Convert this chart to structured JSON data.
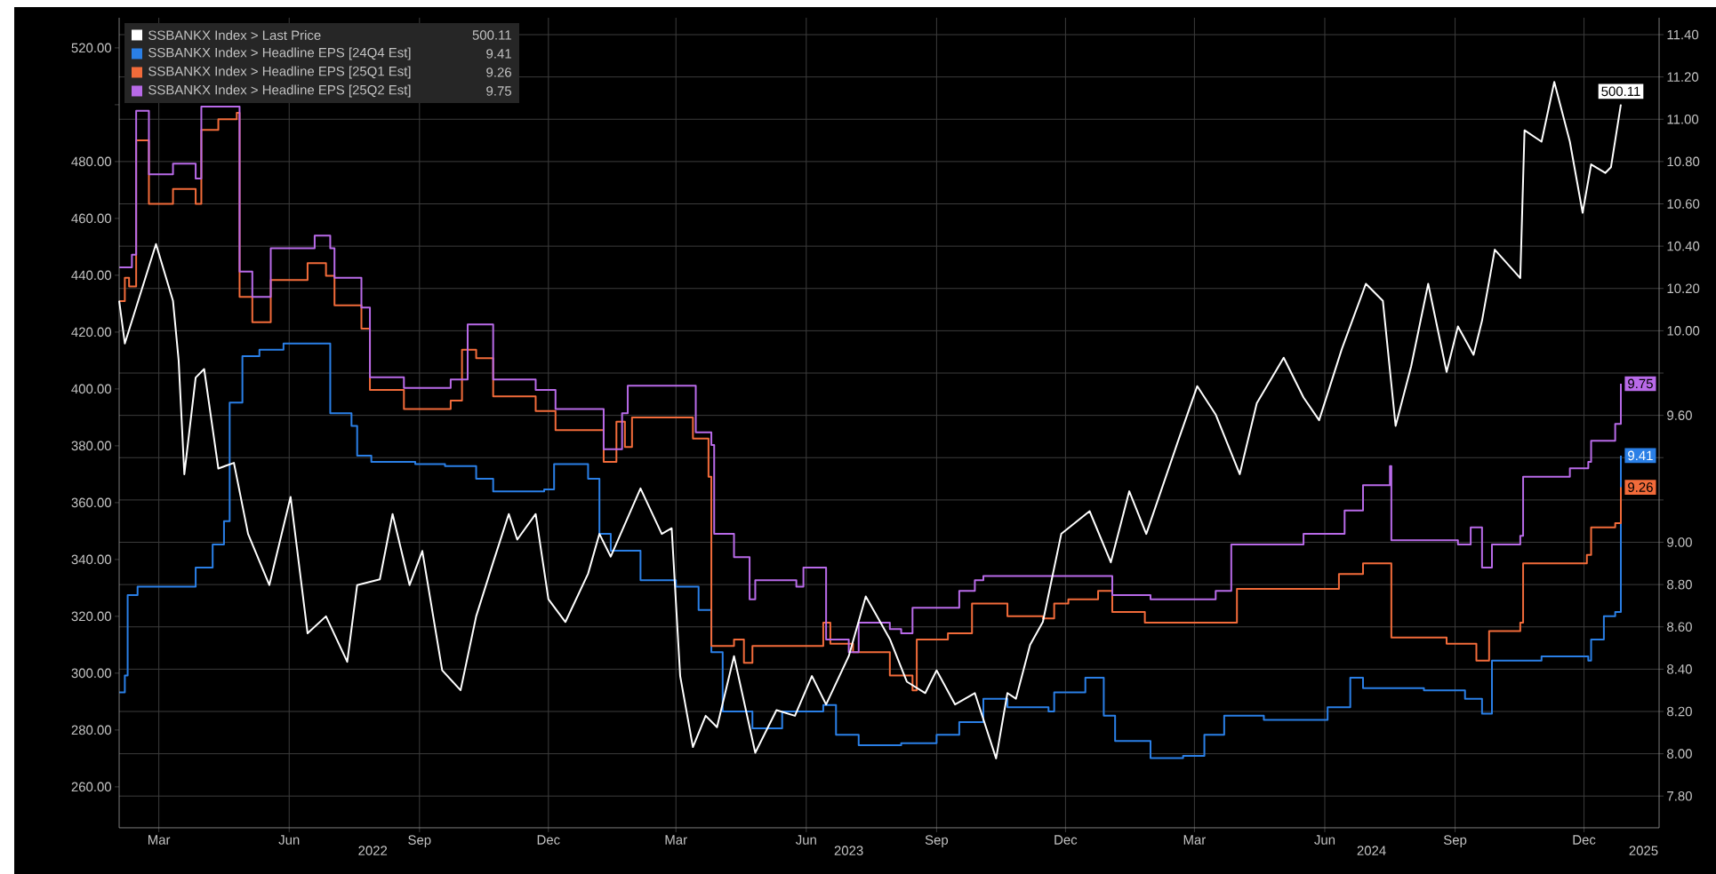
{
  "chart_data": {
    "type": "line",
    "xlim": [
      "2022-02-01",
      "2025-01-23"
    ],
    "xticks": [
      {
        "value": "2022-03-01",
        "label": "Mar"
      },
      {
        "value": "2022-06-01",
        "label": "Jun"
      },
      {
        "value": "2022-09-01",
        "label": "Sep"
      },
      {
        "value": "2022-12-01",
        "label": "Dec"
      },
      {
        "value": "2023-03-01",
        "label": "Mar"
      },
      {
        "value": "2023-06-01",
        "label": "Jun"
      },
      {
        "value": "2023-09-01",
        "label": "Sep"
      },
      {
        "value": "2023-12-01",
        "label": "Dec"
      },
      {
        "value": "2024-03-01",
        "label": "Mar"
      },
      {
        "value": "2024-06-01",
        "label": "Jun"
      },
      {
        "value": "2024-09-01",
        "label": "Sep"
      },
      {
        "value": "2024-12-01",
        "label": "Dec"
      }
    ],
    "x2lim": [
      "2022-02-01",
      "2025-01-23"
    ],
    "x2ticks": [
      {
        "value": "2022-07-30",
        "label": "2022"
      },
      {
        "value": "2023-07-01",
        "label": "2023"
      },
      {
        "value": "2024-07-04",
        "label": "2024"
      },
      {
        "value": "2025-01-12",
        "label": "2025"
      }
    ],
    "annotations": [
      "500.11",
      "9.41",
      "9.26",
      "9.75"
    ],
    "ylim": [
      245.6,
      530.6
    ],
    "yticks": [
      {
        "value": 260,
        "label": "260.00"
      },
      {
        "value": 280,
        "label": "280.00"
      },
      {
        "value": 300,
        "label": "300.00"
      },
      {
        "value": 320,
        "label": "320.00"
      },
      {
        "value": 340,
        "label": "340.00"
      },
      {
        "value": 360,
        "label": "360.00"
      },
      {
        "value": 380,
        "label": "380.00"
      },
      {
        "value": 400,
        "label": "400.00"
      },
      {
        "value": 420,
        "label": "420.00"
      },
      {
        "value": 440,
        "label": "440.00"
      },
      {
        "value": 460,
        "label": "460.00"
      },
      {
        "value": 480,
        "label": "480.00"
      },
      {
        "value": 500,
        "label": null
      },
      {
        "value": 520,
        "label": "520.00"
      }
    ],
    "y2lim": [
      7.65,
      11.48
    ],
    "y2ticks": [
      {
        "value": 7.8,
        "label": "7.80"
      },
      {
        "value": 8.0,
        "label": "8.00"
      },
      {
        "value": 8.2,
        "label": "8.20"
      },
      {
        "value": 8.4,
        "label": "8.40"
      },
      {
        "value": 8.6,
        "label": "8.60"
      },
      {
        "value": 8.8,
        "label": "8.80"
      },
      {
        "value": 9.0,
        "label": "9.00"
      },
      {
        "value": 9.2,
        "label": null
      },
      {
        "value": 9.4,
        "label": null
      },
      {
        "value": 9.6,
        "label": "9.60"
      },
      {
        "value": 9.8,
        "label": null
      },
      {
        "value": 10.0,
        "label": "10.00"
      },
      {
        "value": 10.2,
        "label": "10.20"
      },
      {
        "value": 10.4,
        "label": "10.40"
      },
      {
        "value": 10.6,
        "label": "10.60"
      },
      {
        "value": 10.8,
        "label": "10.80"
      },
      {
        "value": 11.0,
        "label": "11.00"
      },
      {
        "value": 11.2,
        "label": "11.20"
      },
      {
        "value": 11.4,
        "label": "11.40"
      }
    ],
    "grid": true,
    "legend": "top left",
    "series": [
      {
        "name": "SSBANKX Index > Last Price",
        "color": "#ffffff",
        "axis": "y",
        "x": [
          "2022-02-01",
          "2022-02-05",
          "2022-02-27",
          "2022-03-11",
          "2022-03-15",
          "2022-03-19",
          "2022-03-27",
          "2022-04-02",
          "2022-04-12",
          "2022-04-23",
          "2022-05-03",
          "2022-05-18",
          "2022-06-02",
          "2022-06-14",
          "2022-06-27",
          "2022-07-12",
          "2022-07-19",
          "2022-08-04",
          "2022-08-13",
          "2022-08-25",
          "2022-09-03",
          "2022-09-17",
          "2022-09-30",
          "2022-10-11",
          "2022-10-23",
          "2022-11-03",
          "2022-11-09",
          "2022-11-22",
          "2022-12-01",
          "2022-12-13",
          "2022-12-29",
          "2023-01-06",
          "2023-01-14",
          "2023-02-04",
          "2023-02-19",
          "2023-02-26",
          "2023-03-04",
          "2023-03-13",
          "2023-03-22",
          "2023-03-30",
          "2023-04-11",
          "2023-04-26",
          "2023-05-11",
          "2023-05-24",
          "2023-06-05",
          "2023-06-15",
          "2023-07-01",
          "2023-07-13",
          "2023-07-21",
          "2023-07-30",
          "2023-08-11",
          "2023-08-24",
          "2023-09-01",
          "2023-09-14",
          "2023-09-28",
          "2023-10-13",
          "2023-10-21",
          "2023-10-27",
          "2023-11-06",
          "2023-11-15",
          "2023-11-28",
          "2023-12-18",
          "2024-01-02",
          "2024-01-15",
          "2024-01-27",
          "2024-02-18",
          "2024-03-03",
          "2024-03-16",
          "2024-04-02",
          "2024-04-14",
          "2024-05-03",
          "2024-05-17",
          "2024-05-28",
          "2024-06-13",
          "2024-06-30",
          "2024-07-12",
          "2024-07-21",
          "2024-08-01",
          "2024-08-13",
          "2024-08-26",
          "2024-09-03",
          "2024-09-14",
          "2024-09-20",
          "2024-09-29",
          "2024-10-17",
          "2024-10-20",
          "2024-11-01",
          "2024-11-10",
          "2024-11-21",
          "2024-11-30",
          "2024-12-06",
          "2024-12-16",
          "2024-12-20",
          "2024-12-27"
        ],
        "values": [
          431,
          416,
          451,
          431,
          410,
          370,
          404,
          407,
          372,
          374,
          349,
          331,
          362,
          314,
          320,
          304,
          331,
          333,
          356,
          331,
          343,
          301,
          294,
          320,
          339,
          356,
          347,
          356,
          326,
          318,
          335,
          349,
          341,
          365,
          349,
          351,
          299,
          274,
          285,
          281,
          306,
          272,
          287,
          285,
          299,
          289,
          306,
          327,
          320,
          312,
          297,
          293,
          301,
          289,
          293,
          270,
          293,
          291,
          310,
          318,
          349,
          357,
          339,
          364,
          349,
          381,
          401,
          391,
          370,
          395,
          411,
          397,
          389,
          414,
          437,
          431,
          387,
          408,
          437,
          406,
          422,
          412,
          424,
          449,
          439,
          491,
          487,
          508,
          487,
          462,
          479,
          476,
          478,
          500.11
        ],
        "value_labels": [
          null,
          null,
          null,
          null,
          null,
          null,
          null,
          null,
          null,
          null,
          null,
          null,
          null,
          null,
          null,
          null,
          null,
          null,
          null,
          null,
          null,
          null,
          null,
          null,
          null,
          null,
          null,
          null,
          null,
          null,
          null,
          null,
          null,
          null,
          null,
          null,
          null,
          null,
          null,
          null,
          null,
          null,
          null,
          null,
          null,
          null,
          null,
          null,
          null,
          null,
          null,
          null,
          null,
          null,
          null,
          null,
          null,
          null,
          null,
          null,
          null,
          null,
          null,
          null,
          null,
          null,
          null,
          null,
          null,
          null,
          null,
          null,
          null,
          null,
          null,
          null,
          null,
          null,
          null,
          null,
          null,
          null,
          null,
          null,
          null,
          null,
          null,
          null,
          null,
          null,
          null,
          null,
          null,
          "500.11"
        ]
      },
      {
        "name": "SSBANKX Index > Headline EPS [24Q4 Est]",
        "color": "#2a7fe6",
        "type": "step",
        "axis": "y2",
        "x": [
          "2022-02-01",
          "2022-02-05",
          "2022-02-07",
          "2022-02-14",
          "2022-03-27",
          "2022-04-08",
          "2022-04-16",
          "2022-04-20",
          "2022-04-29",
          "2022-05-11",
          "2022-05-28",
          "2022-06-30",
          "2022-07-15",
          "2022-07-19",
          "2022-07-29",
          "2022-08-29",
          "2022-09-19",
          "2022-10-11",
          "2022-10-23",
          "2022-11-28",
          "2022-12-05",
          "2022-12-29",
          "2023-01-06",
          "2023-01-14",
          "2023-02-04",
          "2023-03-01",
          "2023-03-17",
          "2023-03-26",
          "2023-04-03",
          "2023-04-24",
          "2023-05-15",
          "2023-06-13",
          "2023-06-22",
          "2023-07-08",
          "2023-08-07",
          "2023-09-01",
          "2023-09-17",
          "2023-10-04",
          "2023-10-21",
          "2023-11-19",
          "2023-11-23",
          "2023-12-15",
          "2023-12-28",
          "2024-01-05",
          "2024-01-30",
          "2024-02-22",
          "2024-03-08",
          "2024-03-22",
          "2024-04-19",
          "2024-06-03",
          "2024-06-19",
          "2024-06-28",
          "2024-08-10",
          "2024-09-08",
          "2024-09-20",
          "2024-09-27",
          "2024-11-01",
          "2024-12-04",
          "2024-12-06",
          "2024-12-15",
          "2024-12-23",
          "2024-12-27"
        ],
        "values": [
          8.29,
          8.37,
          8.75,
          8.79,
          8.88,
          8.99,
          9.1,
          9.66,
          9.88,
          9.91,
          9.94,
          9.61,
          9.55,
          9.41,
          9.38,
          9.37,
          9.36,
          9.3,
          9.24,
          9.25,
          9.37,
          9.3,
          9.04,
          8.96,
          8.82,
          8.79,
          8.68,
          8.48,
          8.2,
          8.12,
          8.2,
          8.23,
          8.09,
          8.04,
          8.05,
          8.09,
          8.15,
          8.26,
          8.22,
          8.2,
          8.29,
          8.36,
          8.18,
          8.06,
          7.98,
          7.99,
          8.09,
          8.18,
          8.16,
          8.22,
          8.36,
          8.31,
          8.3,
          8.26,
          8.19,
          8.44,
          8.46,
          8.44,
          8.54,
          8.65,
          8.67,
          9.41
        ],
        "value_labels": [
          null,
          null,
          null,
          null,
          null,
          null,
          null,
          null,
          null,
          null,
          null,
          null,
          null,
          null,
          null,
          null,
          null,
          null,
          null,
          null,
          null,
          null,
          null,
          null,
          null,
          null,
          null,
          null,
          null,
          null,
          null,
          null,
          null,
          null,
          null,
          null,
          null,
          null,
          null,
          null,
          null,
          null,
          null,
          null,
          null,
          null,
          null,
          null,
          null,
          null,
          null,
          null,
          null,
          null,
          null,
          null,
          null,
          null,
          null,
          null,
          null,
          "9.41"
        ]
      },
      {
        "name": "SSBANKX Index > Headline EPS [25Q1 Est]",
        "color": "#f26b3a",
        "type": "step",
        "axis": "y2",
        "x": [
          "2022-02-01",
          "2022-02-05",
          "2022-02-08",
          "2022-02-13",
          "2022-02-22",
          "2022-03-11",
          "2022-03-27",
          "2022-03-31",
          "2022-04-12",
          "2022-04-25",
          "2022-04-27",
          "2022-05-06",
          "2022-05-19",
          "2022-06-14",
          "2022-06-27",
          "2022-07-03",
          "2022-07-22",
          "2022-07-28",
          "2022-08-21",
          "2022-09-23",
          "2022-10-01",
          "2022-10-11",
          "2022-10-23",
          "2022-11-22",
          "2022-12-06",
          "2023-01-09",
          "2023-01-18",
          "2023-01-24",
          "2023-01-29",
          "2023-03-13",
          "2023-03-24",
          "2023-03-26",
          "2023-04-11",
          "2023-04-18",
          "2023-04-24",
          "2023-06-13",
          "2023-06-18",
          "2023-07-04",
          "2023-07-30",
          "2023-08-15",
          "2023-08-18",
          "2023-09-09",
          "2023-09-26",
          "2023-10-21",
          "2023-11-15",
          "2023-11-23",
          "2023-12-03",
          "2023-12-24",
          "2024-01-03",
          "2024-01-26",
          "2024-03-31",
          "2024-06-11",
          "2024-06-28",
          "2024-07-18",
          "2024-08-26",
          "2024-09-16",
          "2024-09-25",
          "2024-10-17",
          "2024-10-19",
          "2024-12-03",
          "2024-12-06",
          "2024-12-23",
          "2024-12-27"
        ],
        "values": [
          10.14,
          10.25,
          10.21,
          10.9,
          10.6,
          10.67,
          10.6,
          10.95,
          11.0,
          11.03,
          10.16,
          10.04,
          10.24,
          10.32,
          10.26,
          10.12,
          10.01,
          9.72,
          9.63,
          9.67,
          9.91,
          9.87,
          9.69,
          9.62,
          9.53,
          9.38,
          9.57,
          9.45,
          9.59,
          9.49,
          9.31,
          8.51,
          8.54,
          8.43,
          8.51,
          8.62,
          8.52,
          8.48,
          8.37,
          8.3,
          8.54,
          8.57,
          8.71,
          8.65,
          8.64,
          8.71,
          8.73,
          8.77,
          8.67,
          8.62,
          8.78,
          8.85,
          8.9,
          8.55,
          8.52,
          8.44,
          8.58,
          8.62,
          8.9,
          8.94,
          9.07,
          9.09,
          9.26
        ],
        "value_labels": [
          null,
          null,
          null,
          null,
          null,
          null,
          null,
          null,
          null,
          null,
          null,
          null,
          null,
          null,
          null,
          null,
          null,
          null,
          null,
          null,
          null,
          null,
          null,
          null,
          null,
          null,
          null,
          null,
          null,
          null,
          null,
          null,
          null,
          null,
          null,
          null,
          null,
          null,
          null,
          null,
          null,
          null,
          null,
          null,
          null,
          null,
          null,
          null,
          null,
          null,
          null,
          null,
          null,
          null,
          null,
          null,
          null,
          null,
          null,
          null,
          null,
          null,
          "9.26"
        ]
      },
      {
        "name": "SSBANKX Index > Headline EPS [25Q2 Est]",
        "color": "#b86ae8",
        "type": "step",
        "axis": "y2",
        "x": [
          "2022-02-01",
          "2022-02-10",
          "2022-02-13",
          "2022-02-22",
          "2022-03-11",
          "2022-03-27",
          "2022-03-31",
          "2022-04-27",
          "2022-05-06",
          "2022-05-19",
          "2022-06-19",
          "2022-06-30",
          "2022-07-03",
          "2022-07-22",
          "2022-07-28",
          "2022-08-21",
          "2022-09-23",
          "2022-10-05",
          "2022-10-23",
          "2022-11-22",
          "2022-12-06",
          "2023-01-09",
          "2023-01-22",
          "2023-01-26",
          "2023-03-15",
          "2023-03-26",
          "2023-03-28",
          "2023-04-11",
          "2023-04-22",
          "2023-04-26",
          "2023-05-25",
          "2023-05-30",
          "2023-06-15",
          "2023-07-01",
          "2023-07-08",
          "2023-07-30",
          "2023-08-07",
          "2023-08-15",
          "2023-09-17",
          "2023-09-28",
          "2023-10-04",
          "2024-01-03",
          "2024-01-30",
          "2024-03-16",
          "2024-03-27",
          "2024-05-17",
          "2024-06-15",
          "2024-06-28",
          "2024-07-17",
          "2024-07-18",
          "2024-09-03",
          "2024-09-12",
          "2024-09-20",
          "2024-09-27",
          "2024-10-17",
          "2024-10-19",
          "2024-11-21",
          "2024-12-04",
          "2024-12-06",
          "2024-12-23",
          "2024-12-27"
        ],
        "values": [
          10.3,
          10.36,
          11.04,
          10.74,
          10.79,
          10.72,
          11.06,
          10.28,
          10.16,
          10.39,
          10.45,
          10.39,
          10.25,
          10.11,
          9.78,
          9.73,
          9.77,
          10.03,
          9.77,
          9.72,
          9.63,
          9.44,
          9.61,
          9.74,
          9.52,
          9.46,
          9.04,
          8.93,
          8.73,
          8.82,
          8.79,
          8.88,
          8.54,
          8.48,
          8.62,
          8.59,
          8.57,
          8.69,
          8.77,
          8.82,
          8.84,
          8.75,
          8.73,
          8.77,
          8.99,
          9.04,
          9.15,
          9.27,
          9.36,
          9.01,
          8.99,
          9.07,
          8.88,
          8.99,
          9.03,
          9.31,
          9.35,
          9.38,
          9.48,
          9.56,
          9.75
        ],
        "value_labels": [
          null,
          null,
          null,
          null,
          null,
          null,
          null,
          null,
          null,
          null,
          null,
          null,
          null,
          null,
          null,
          null,
          null,
          null,
          null,
          null,
          null,
          null,
          null,
          null,
          null,
          null,
          null,
          null,
          null,
          null,
          null,
          null,
          null,
          null,
          null,
          null,
          null,
          null,
          null,
          null,
          null,
          null,
          null,
          null,
          null,
          null,
          null,
          null,
          null,
          null,
          null,
          null,
          null,
          null,
          null,
          null,
          null,
          null,
          null,
          null,
          "9.75"
        ]
      }
    ]
  }
}
